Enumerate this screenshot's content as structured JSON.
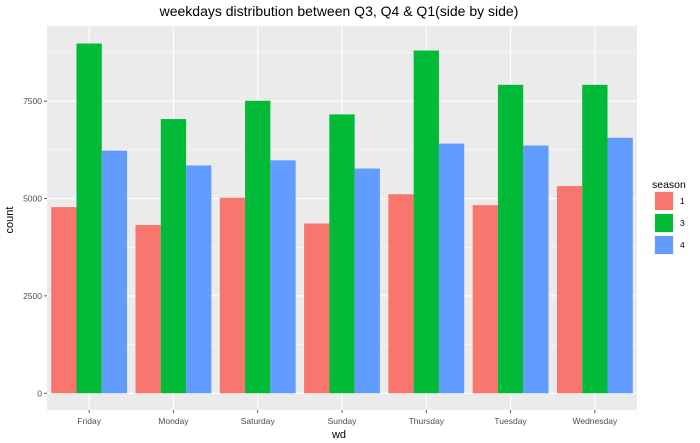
{
  "chart_data": {
    "type": "bar",
    "title": "weekdays distribution between Q3, Q4 & Q1(side by side)",
    "xlabel": "wd",
    "ylabel": "count",
    "categories": [
      "Friday",
      "Monday",
      "Saturday",
      "Sunday",
      "Thursday",
      "Tuesday",
      "Wednesday"
    ],
    "series": [
      {
        "name": "1",
        "color": "#F8766D",
        "values": [
          4780,
          4320,
          5020,
          4360,
          5110,
          4830,
          5320
        ]
      },
      {
        "name": "3",
        "color": "#00BA38",
        "values": [
          8980,
          7040,
          7510,
          7160,
          8800,
          7920,
          7920
        ]
      },
      {
        "name": "4",
        "color": "#619CFF",
        "values": [
          6230,
          5850,
          5980,
          5770,
          6410,
          6360,
          6560
        ]
      }
    ],
    "y_ticks": [
      0,
      2500,
      5000,
      7500
    ],
    "ylim": [
      -430,
      9430
    ],
    "legend": {
      "title": "season",
      "position": "right"
    },
    "grid": true,
    "panel_background": "#EBEBEB"
  }
}
